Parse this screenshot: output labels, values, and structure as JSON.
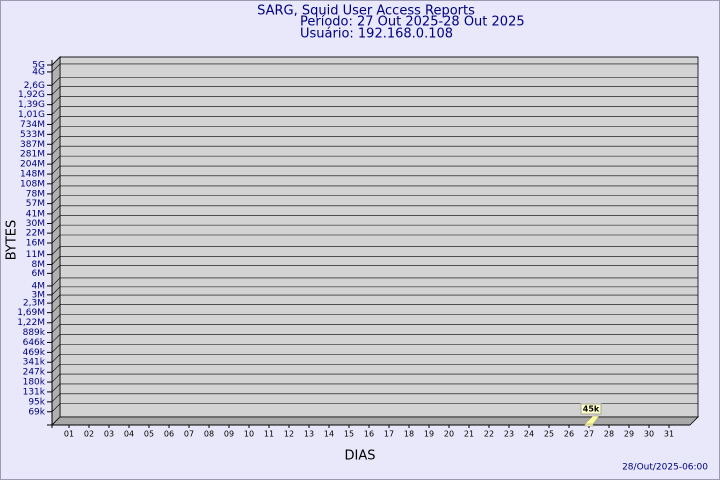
{
  "chart_data": {
    "type": "bar",
    "title": "SARG, Squid User Access Reports",
    "subtitle": "Período: 27 Out 2025-28 Out 2025",
    "user": "Usuário: 192.168.0.108",
    "x_label": "DIAS",
    "y_label": "BYTES",
    "footer": "28/Out/2025-06:00",
    "categories": [
      "01",
      "02",
      "03",
      "04",
      "05",
      "06",
      "07",
      "08",
      "09",
      "10",
      "11",
      "12",
      "13",
      "14",
      "15",
      "16",
      "17",
      "18",
      "19",
      "20",
      "21",
      "22",
      "23",
      "24",
      "25",
      "26",
      "27",
      "28",
      "29",
      "30",
      "31"
    ],
    "values": [
      null,
      null,
      null,
      null,
      null,
      null,
      null,
      null,
      null,
      null,
      null,
      null,
      null,
      null,
      null,
      null,
      null,
      null,
      null,
      null,
      null,
      null,
      null,
      null,
      null,
      null,
      45000,
      null,
      null,
      null,
      null
    ],
    "value_labels": [
      null,
      null,
      null,
      null,
      null,
      null,
      null,
      null,
      null,
      null,
      null,
      null,
      null,
      null,
      null,
      null,
      null,
      null,
      null,
      null,
      null,
      null,
      null,
      null,
      null,
      null,
      "45k",
      null,
      null,
      null,
      null
    ],
    "color": "#ffff99",
    "log_scale": true,
    "grid": true,
    "ylim": [
      45000,
      5000000000
    ],
    "yticks": [
      {
        "value": 69000,
        "label": "69k"
      },
      {
        "value": 95000,
        "label": "95k"
      },
      {
        "value": 131000,
        "label": "131k"
      },
      {
        "value": 180000,
        "label": "180k"
      },
      {
        "value": 247000,
        "label": "247k"
      },
      {
        "value": 341000,
        "label": "341k"
      },
      {
        "value": 469000,
        "label": "469k"
      },
      {
        "value": 646000,
        "label": "646k"
      },
      {
        "value": 889000,
        "label": "889k"
      },
      {
        "value": 1220000,
        "label": "1,22M"
      },
      {
        "value": 1690000,
        "label": "1,69M"
      },
      {
        "value": 2300000,
        "label": "2,3M"
      },
      {
        "value": 3000000,
        "label": "3M"
      },
      {
        "value": 4000000,
        "label": "4M"
      },
      {
        "value": 6000000,
        "label": "6M"
      },
      {
        "value": 8000000,
        "label": "8M"
      },
      {
        "value": 11000000,
        "label": "11M"
      },
      {
        "value": 16000000,
        "label": "16M"
      },
      {
        "value": 22000000,
        "label": "22M"
      },
      {
        "value": 30000000,
        "label": "30M"
      },
      {
        "value": 41000000,
        "label": "41M"
      },
      {
        "value": 57000000,
        "label": "57M"
      },
      {
        "value": 78000000,
        "label": "78M"
      },
      {
        "value": 108000000,
        "label": "108M"
      },
      {
        "value": 148000000,
        "label": "148M"
      },
      {
        "value": 204000000,
        "label": "204M"
      },
      {
        "value": 281000000,
        "label": "281M"
      },
      {
        "value": 387000000,
        "label": "387M"
      },
      {
        "value": 533000000,
        "label": "533M"
      },
      {
        "value": 734000000,
        "label": "734M"
      },
      {
        "value": 1010000000,
        "label": "1,01G"
      },
      {
        "value": 1390000000,
        "label": "1,39G"
      },
      {
        "value": 1920000000,
        "label": "1,92G"
      },
      {
        "value": 2600000000,
        "label": "2,6G"
      },
      {
        "value": 4000000000,
        "label": "4G"
      },
      {
        "value": 5000000000,
        "label": "5G"
      }
    ]
  }
}
